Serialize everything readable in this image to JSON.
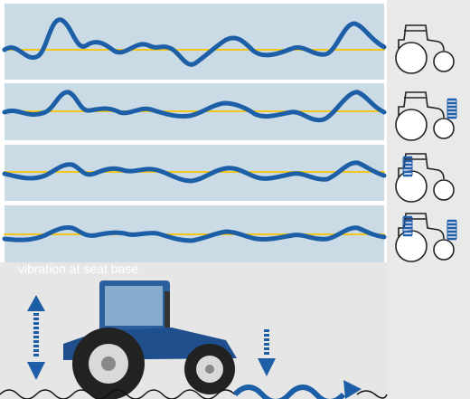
{
  "caption": "vibration at seat base"
}
